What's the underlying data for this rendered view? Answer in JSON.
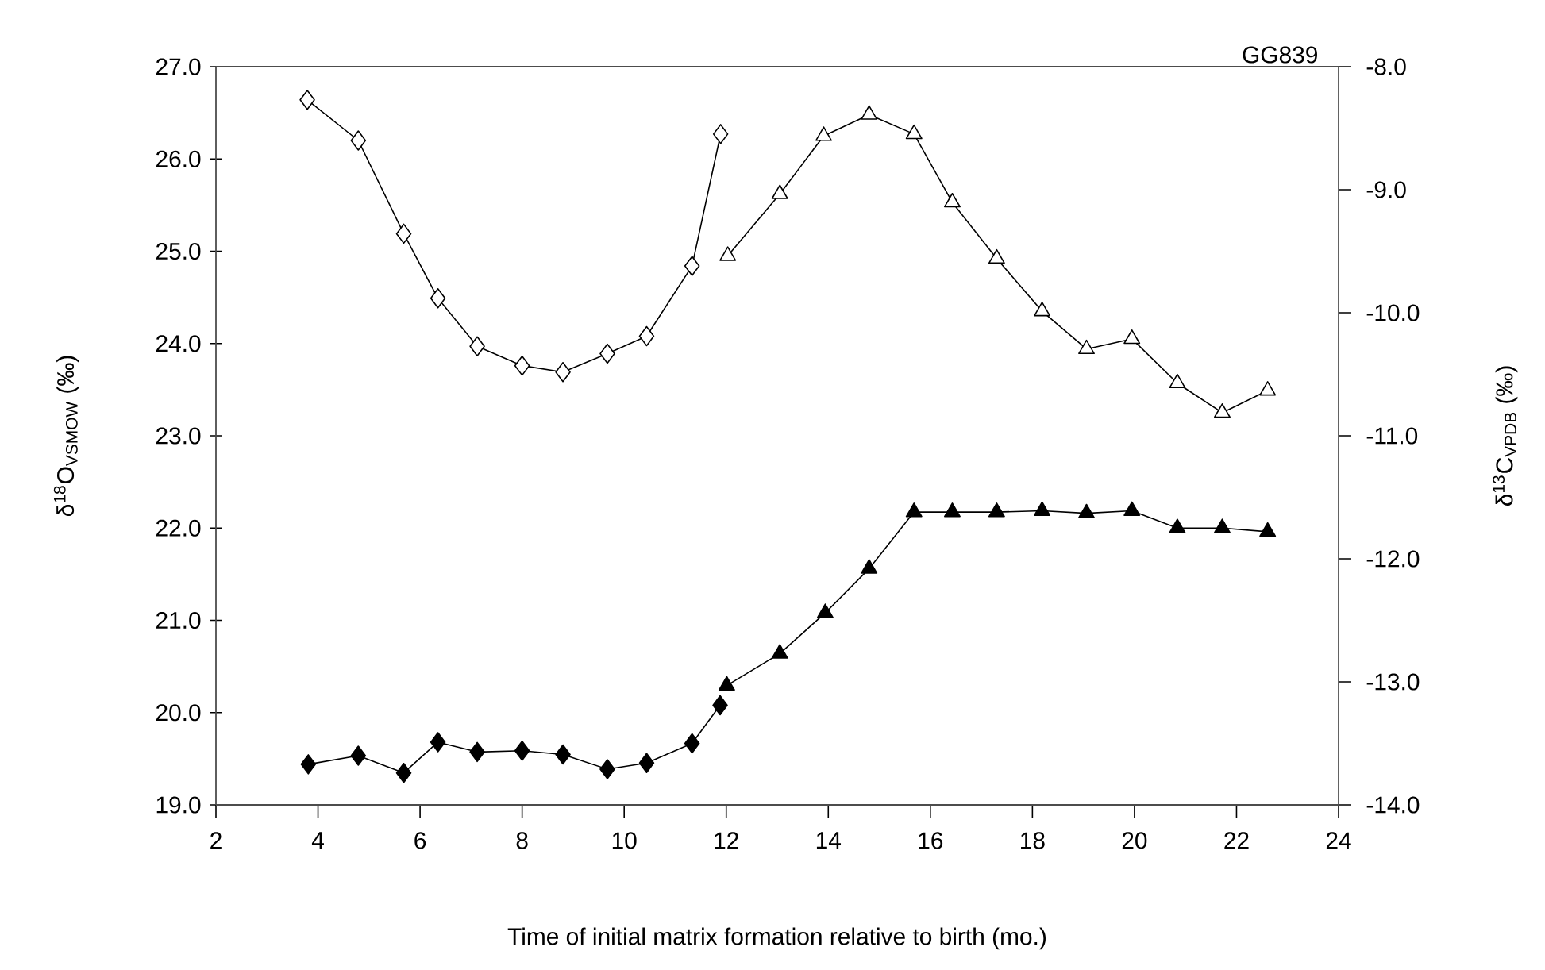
{
  "chart_data": {
    "type": "line",
    "title": "GG839",
    "xlabel": "Time of initial matrix formation relative to birth (mo.)",
    "ylabel": "δ$^{18}$O$_{VSMOW}$ (‰)",
    "y2label": "δ$^{13}$C$_{VPDB}$ (‰)",
    "xlim": [
      2,
      24
    ],
    "xticks": [
      2,
      4,
      6,
      8,
      10,
      12,
      14,
      16,
      18,
      20,
      22,
      24
    ],
    "ylim": [
      19,
      27
    ],
    "yticks": [
      {
        "value": 19,
        "label": "19.0"
      },
      {
        "value": 20,
        "label": "20.0"
      },
      {
        "value": 21,
        "label": "21.0"
      },
      {
        "value": 22,
        "label": "22.0"
      },
      {
        "value": 23,
        "label": "23.0"
      },
      {
        "value": 24,
        "label": "24.0"
      },
      {
        "value": 25,
        "label": "25.0"
      },
      {
        "value": 26,
        "label": "26.0"
      },
      {
        "value": 27,
        "label": "27.0"
      }
    ],
    "y2lim": [
      -14,
      -8
    ],
    "y2ticks": [
      {
        "value": -14,
        "label": "-14.0"
      },
      {
        "value": -13,
        "label": "-13.0"
      },
      {
        "value": -12,
        "label": "-12.0"
      },
      {
        "value": -11,
        "label": "-11.0"
      },
      {
        "value": -10,
        "label": "-10.0"
      },
      {
        "value": -9,
        "label": "-9.0"
      },
      {
        "value": -8,
        "label": "-8.0"
      }
    ],
    "grid": false,
    "line_style": "solid",
    "series": [
      {
        "color": "#000000",
        "marker": "diamond",
        "x": [
          3.79,
          4.79,
          5.68,
          6.35,
          7.12,
          8.0,
          8.8,
          9.67,
          10.44,
          11.33,
          11.89
        ],
        "values": [
          26.64,
          26.2,
          25.19,
          24.49,
          23.97,
          23.76,
          23.69,
          23.89,
          24.08,
          24.84,
          26.27
        ]
      },
      {
        "color": "#000000",
        "marker": "triangle",
        "x": [
          12.03,
          13.05,
          13.91,
          14.8,
          15.68,
          16.43,
          17.3,
          18.19,
          19.06,
          19.95,
          20.84,
          21.72,
          22.61
        ],
        "values": [
          24.95,
          25.62,
          26.25,
          26.48,
          26.27,
          25.53,
          24.92,
          24.35,
          23.94,
          24.05,
          23.57,
          23.25,
          23.49
        ]
      },
      {
        "color": "#000000",
        "marker": "diamond",
        "axis": "y2",
        "x": [
          3.81,
          4.79,
          5.68,
          6.35,
          7.12,
          8.0,
          8.8,
          9.67,
          10.44,
          11.33,
          11.88
        ],
        "values": [
          -13.67,
          -13.6,
          -13.74,
          -13.49,
          -13.57,
          -13.56,
          -13.59,
          -13.71,
          -13.66,
          -13.5,
          -13.19
        ]
      },
      {
        "color": "#000000",
        "marker": "triangle",
        "axis": "y2",
        "x": [
          12.01,
          13.05,
          13.94,
          14.8,
          15.68,
          16.43,
          17.3,
          18.19,
          19.06,
          19.95,
          20.84,
          21.72,
          22.61
        ],
        "values": [
          -13.03,
          -12.77,
          -12.44,
          -12.08,
          -11.62,
          -11.62,
          -11.62,
          -11.61,
          -11.63,
          -11.61,
          -11.75,
          -11.75,
          -11.78
        ]
      }
    ]
  }
}
